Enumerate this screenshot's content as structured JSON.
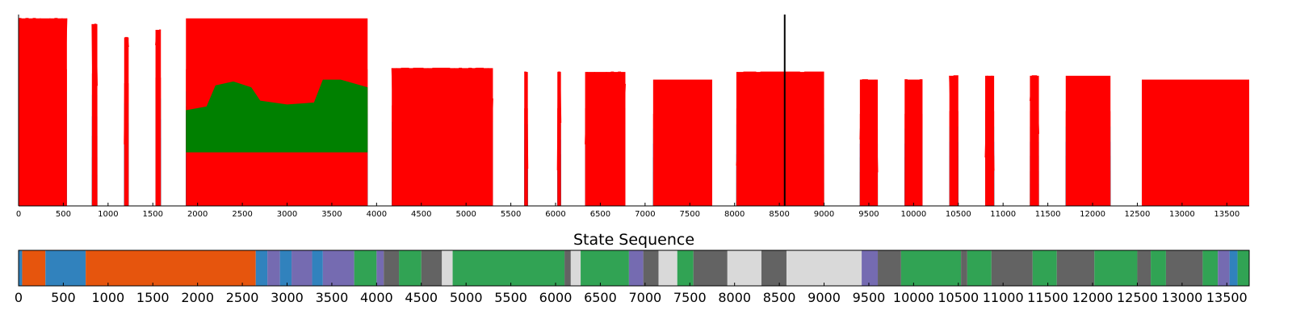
{
  "chart_data": [
    {
      "type": "line",
      "title": "",
      "xlabel": "",
      "ylabel": "",
      "xlim": [
        0,
        13750
      ],
      "ylim": [
        0,
        1
      ],
      "x_ticks": [
        0,
        500,
        1000,
        1500,
        2000,
        2500,
        3000,
        3500,
        4000,
        4500,
        5000,
        5500,
        6000,
        6500,
        7000,
        7500,
        8000,
        8500,
        9000,
        9500,
        10000,
        10500,
        11000,
        11500,
        12000,
        12500,
        13000,
        13500
      ],
      "x_tick_labels": [
        "0",
        "500",
        "1000",
        "1500",
        "2000",
        "2500",
        "3000",
        "3500",
        "4000",
        "4500",
        "5000",
        "5500",
        "6000",
        "6500",
        "7000",
        "7500",
        "8000",
        "8500",
        "9000",
        "9500",
        "10000",
        "10500",
        "11000",
        "11500",
        "12000",
        "12500",
        "13000",
        "13500"
      ],
      "series_colors": [
        "#000000",
        "#bfbf00",
        "#00bfbf",
        "#ff0000",
        "#008000",
        "#0000ff",
        "#00bfbf",
        "#ff0000",
        "#bf00bf"
      ],
      "band_levels": [
        0.03,
        0.09,
        0.16,
        0.25,
        0.36,
        0.46,
        0.57,
        0.68
      ],
      "segments": [
        {
          "start": 0,
          "end": 540,
          "peak": 0.98,
          "spiky": true
        },
        {
          "start": 820,
          "end": 880,
          "peak": 0.95,
          "spiky": true
        },
        {
          "start": 1180,
          "end": 1230,
          "peak": 0.88,
          "spiky": true
        },
        {
          "start": 1530,
          "end": 1590,
          "peak": 0.92,
          "spiky": true
        },
        {
          "start": 1870,
          "end": 3900,
          "peak": 0.98,
          "spiky": false
        },
        {
          "start": 4170,
          "end": 5300,
          "peak": 0.72,
          "spiky": true
        },
        {
          "start": 5650,
          "end": 5690,
          "peak": 0.7,
          "spiky": true
        },
        {
          "start": 6020,
          "end": 6060,
          "peak": 0.7,
          "spiky": true
        },
        {
          "start": 6330,
          "end": 6780,
          "peak": 0.7,
          "spiky": true
        },
        {
          "start": 7090,
          "end": 7750,
          "peak": 0.66,
          "spiky": false
        },
        {
          "start": 8020,
          "end": 9000,
          "peak": 0.7,
          "spiky": true
        },
        {
          "start": 9400,
          "end": 9600,
          "peak": 0.66,
          "spiky": true
        },
        {
          "start": 9900,
          "end": 10100,
          "peak": 0.66,
          "spiky": true
        },
        {
          "start": 10400,
          "end": 10500,
          "peak": 0.68,
          "spiky": true
        },
        {
          "start": 10800,
          "end": 10900,
          "peak": 0.68,
          "spiky": true
        },
        {
          "start": 11300,
          "end": 11400,
          "peak": 0.68,
          "spiky": true
        },
        {
          "start": 11700,
          "end": 12200,
          "peak": 0.68,
          "spiky": false
        },
        {
          "start": 12550,
          "end": 13750,
          "peak": 0.66,
          "spiky": false
        }
      ],
      "black_spike": {
        "x": 8560,
        "value": 1.0
      }
    },
    {
      "type": "heatmap",
      "title": "State Sequence",
      "xlim": [
        0,
        13750
      ],
      "x_ticks": [
        0,
        500,
        1000,
        1500,
        2000,
        2500,
        3000,
        3500,
        4000,
        4500,
        5000,
        5500,
        6000,
        6500,
        7000,
        7500,
        8000,
        8500,
        9000,
        9500,
        10000,
        10500,
        11000,
        11500,
        12000,
        12500,
        13000,
        13500
      ],
      "x_tick_labels": [
        "0",
        "500",
        "1000",
        "1500",
        "2000",
        "2500",
        "3000",
        "3500",
        "4000",
        "4500",
        "5000",
        "5500",
        "6000",
        "6500",
        "7000",
        "7500",
        "8000",
        "8500",
        "9000",
        "9500",
        "10000",
        "10500",
        "11000",
        "11500",
        "12000",
        "12500",
        "13000",
        "13500"
      ],
      "state_colors": {
        "A": "#3182bd",
        "B": "#e6550d",
        "C": "#756bb1",
        "D": "#31a354",
        "E": "#636363",
        "F": "#d9d9d9"
      },
      "states": [
        {
          "start": 0,
          "end": 40,
          "state": "A"
        },
        {
          "start": 40,
          "end": 300,
          "state": "B"
        },
        {
          "start": 300,
          "end": 750,
          "state": "A"
        },
        {
          "start": 750,
          "end": 2650,
          "state": "B"
        },
        {
          "start": 2650,
          "end": 2780,
          "state": "A"
        },
        {
          "start": 2780,
          "end": 2920,
          "state": "C"
        },
        {
          "start": 2920,
          "end": 3050,
          "state": "A"
        },
        {
          "start": 3050,
          "end": 3280,
          "state": "C"
        },
        {
          "start": 3280,
          "end": 3400,
          "state": "A"
        },
        {
          "start": 3400,
          "end": 3750,
          "state": "C"
        },
        {
          "start": 3750,
          "end": 4000,
          "state": "D"
        },
        {
          "start": 4000,
          "end": 4080,
          "state": "C"
        },
        {
          "start": 4080,
          "end": 4250,
          "state": "E"
        },
        {
          "start": 4250,
          "end": 4500,
          "state": "D"
        },
        {
          "start": 4500,
          "end": 4730,
          "state": "E"
        },
        {
          "start": 4730,
          "end": 4850,
          "state": "F"
        },
        {
          "start": 4850,
          "end": 6100,
          "state": "D"
        },
        {
          "start": 6100,
          "end": 6170,
          "state": "E"
        },
        {
          "start": 6170,
          "end": 6280,
          "state": "F"
        },
        {
          "start": 6280,
          "end": 6820,
          "state": "D"
        },
        {
          "start": 6820,
          "end": 6980,
          "state": "C"
        },
        {
          "start": 6980,
          "end": 7150,
          "state": "E"
        },
        {
          "start": 7150,
          "end": 7360,
          "state": "F"
        },
        {
          "start": 7360,
          "end": 7540,
          "state": "D"
        },
        {
          "start": 7540,
          "end": 7920,
          "state": "E"
        },
        {
          "start": 7920,
          "end": 8300,
          "state": "F"
        },
        {
          "start": 8300,
          "end": 8580,
          "state": "E"
        },
        {
          "start": 8580,
          "end": 9420,
          "state": "F"
        },
        {
          "start": 9420,
          "end": 9600,
          "state": "C"
        },
        {
          "start": 9600,
          "end": 9860,
          "state": "E"
        },
        {
          "start": 9860,
          "end": 10530,
          "state": "D"
        },
        {
          "start": 10530,
          "end": 10600,
          "state": "E"
        },
        {
          "start": 10600,
          "end": 10870,
          "state": "D"
        },
        {
          "start": 10870,
          "end": 11330,
          "state": "E"
        },
        {
          "start": 11330,
          "end": 11600,
          "state": "D"
        },
        {
          "start": 11600,
          "end": 12020,
          "state": "E"
        },
        {
          "start": 12020,
          "end": 12500,
          "state": "D"
        },
        {
          "start": 12500,
          "end": 12650,
          "state": "E"
        },
        {
          "start": 12650,
          "end": 12820,
          "state": "D"
        },
        {
          "start": 12820,
          "end": 13230,
          "state": "E"
        },
        {
          "start": 13230,
          "end": 13400,
          "state": "D"
        },
        {
          "start": 13400,
          "end": 13530,
          "state": "C"
        },
        {
          "start": 13530,
          "end": 13620,
          "state": "A"
        },
        {
          "start": 13620,
          "end": 13750,
          "state": "D"
        }
      ]
    }
  ]
}
